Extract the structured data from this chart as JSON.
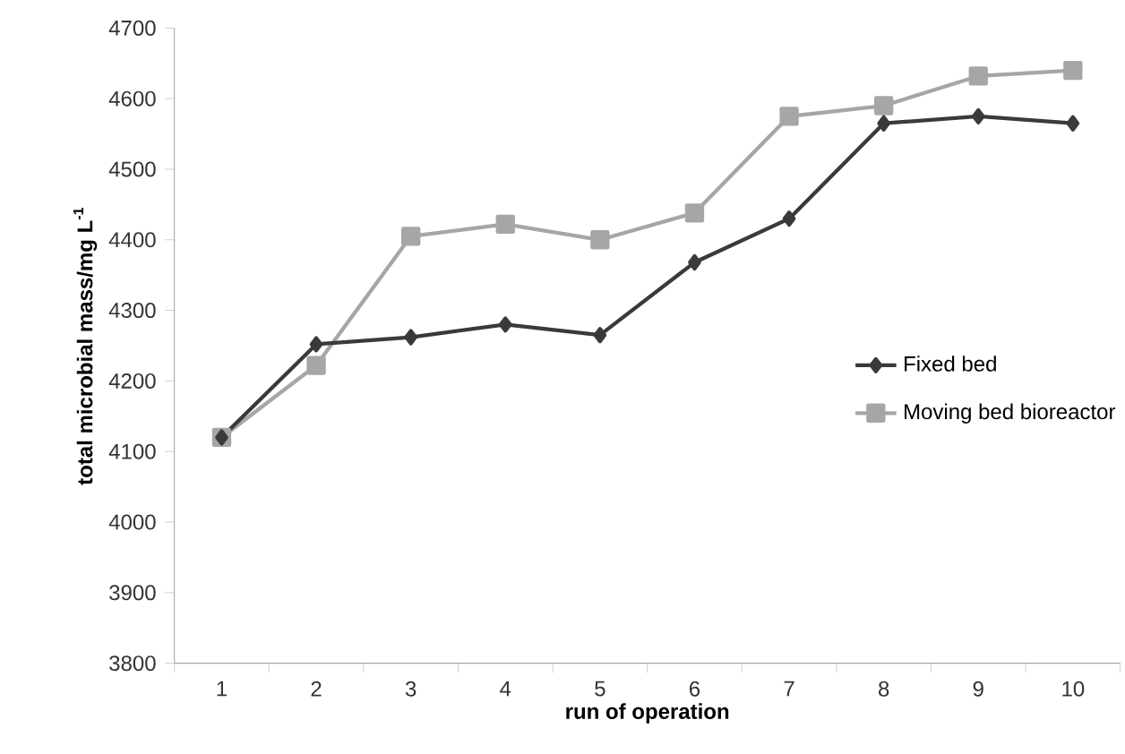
{
  "chart_data": {
    "type": "line",
    "xlabel": "run of operation",
    "ylabel": "total microbial mass/mg L$^{-1}$",
    "categories": [
      "1",
      "2",
      "3",
      "4",
      "5",
      "6",
      "7",
      "8",
      "9",
      "10"
    ],
    "series": [
      {
        "name": "Fixed bed",
        "color": "#3a3a3a",
        "marker": "diamond",
        "values": [
          4120,
          4252,
          4262,
          4280,
          4265,
          4368,
          4430,
          4565,
          4575,
          4565
        ]
      },
      {
        "name": "Moving bed bioreactor",
        "color": "#a6a6a6",
        "marker": "square",
        "values": [
          4120,
          4222,
          4405,
          4422,
          4400,
          4438,
          4575,
          4590,
          4632,
          4640
        ]
      }
    ],
    "ylim": [
      3800,
      4700
    ],
    "yticks": [
      3800,
      3900,
      4000,
      4100,
      4200,
      4300,
      4400,
      4500,
      4600,
      4700
    ],
    "grid": false,
    "legend": "right"
  }
}
